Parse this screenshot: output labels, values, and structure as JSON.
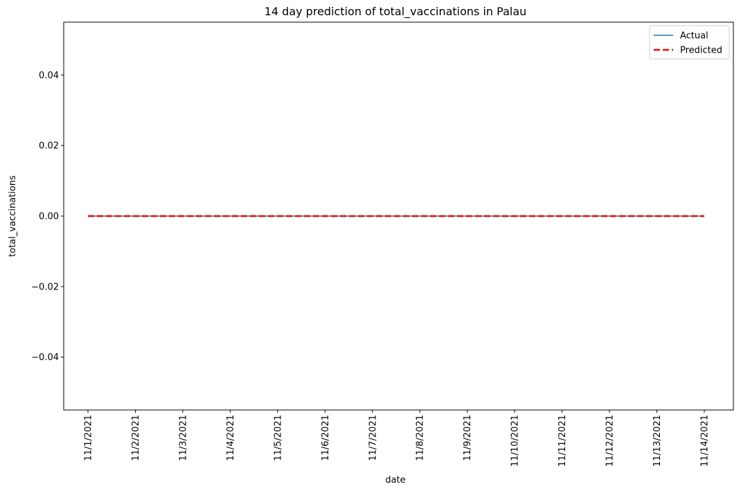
{
  "chart_data": {
    "type": "line",
    "title": "14 day prediction of total_vaccinations in Palau",
    "xlabel": "date",
    "ylabel": "total_vaccinations",
    "categories": [
      "11/1/2021",
      "11/2/2021",
      "11/3/2021",
      "11/4/2021",
      "11/5/2021",
      "11/6/2021",
      "11/7/2021",
      "11/8/2021",
      "11/9/2021",
      "11/10/2021",
      "11/11/2021",
      "11/12/2021",
      "11/13/2021",
      "11/14/2021"
    ],
    "series": [
      {
        "name": "Actual",
        "values": [
          0,
          0,
          0,
          0,
          0,
          0,
          0,
          0,
          0,
          0,
          0,
          0,
          0,
          0
        ],
        "color": "#1f77b4",
        "style": "solid"
      },
      {
        "name": "Predicted",
        "values": [
          0,
          0,
          0,
          0,
          0,
          0,
          0,
          0,
          0,
          0,
          0,
          0,
          0,
          0
        ],
        "color": "#ff0000",
        "style": "dashed"
      }
    ],
    "ylim": [
      -0.055,
      0.055
    ],
    "yticks": [
      -0.04,
      -0.02,
      0.0,
      0.02,
      0.04
    ],
    "ytick_labels": [
      "−0.04",
      "−0.02",
      "0.00",
      "0.02",
      "0.04"
    ],
    "legend_position": "top-right",
    "grid": false
  }
}
